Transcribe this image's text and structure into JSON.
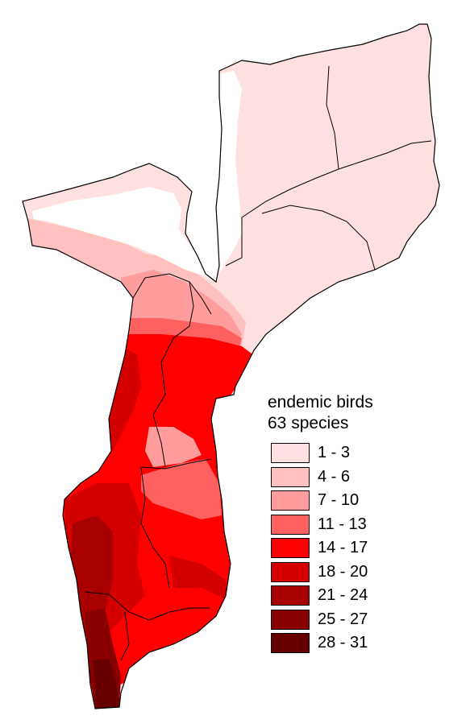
{
  "map": {
    "colors": {
      "background": "#ffffff",
      "border": "#000000",
      "water_gap": "#ffffff",
      "class_1": "#ffe0e0",
      "class_2": "#ffc0c0",
      "class_3": "#ff9d9d",
      "class_4": "#ff6060",
      "class_5": "#ff0000",
      "class_6": "#d40000",
      "class_7": "#a80000",
      "class_8": "#8a0000",
      "class_9": "#660000"
    }
  },
  "legend": {
    "title": "endemic birds",
    "subtitle": "63 species",
    "items": [
      {
        "label": "1 - 3",
        "color": "#ffe0e0"
      },
      {
        "label": "4 - 6",
        "color": "#ffc0c0"
      },
      {
        "label": "7 - 10",
        "color": "#ff9d9d"
      },
      {
        "label": "11 - 13",
        "color": "#ff6060"
      },
      {
        "label": "14 - 17",
        "color": "#ff0000"
      },
      {
        "label": "18 - 20",
        "color": "#d40000"
      },
      {
        "label": "21 - 24",
        "color": "#a80000"
      },
      {
        "label": "25 - 27",
        "color": "#8a0000"
      },
      {
        "label": "28 - 31",
        "color": "#660000"
      }
    ]
  }
}
